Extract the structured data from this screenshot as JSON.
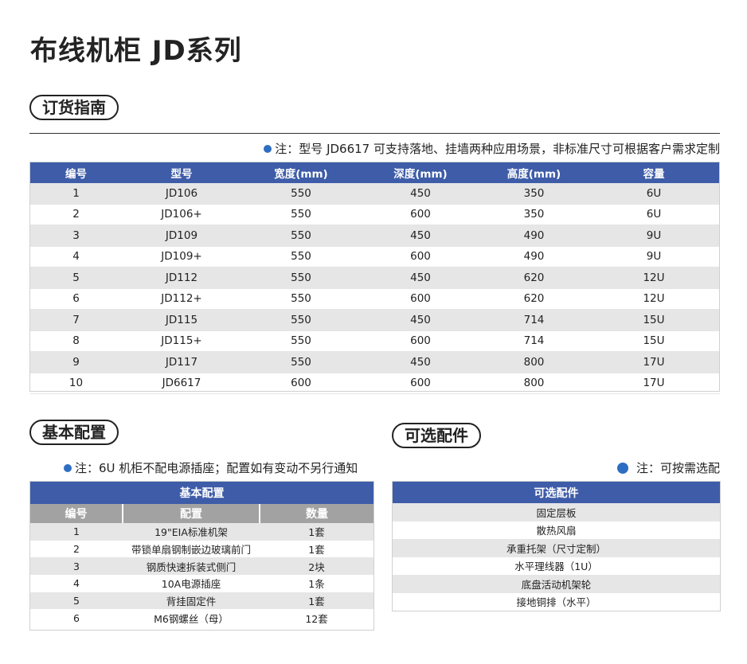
{
  "title": "布线机柜 JD系列",
  "order_section": {
    "heading": "订货指南",
    "note": "注：型号 JD6617 可支持落地、挂墙两种应用场景，非标准尺寸可根据客户需求定制",
    "columns": [
      "编号",
      "型号",
      "宽度(mm)",
      "深度(mm)",
      "高度(mm)",
      "容量"
    ],
    "rows": [
      [
        "1",
        "JD106",
        "550",
        "450",
        "350",
        "6U"
      ],
      [
        "2",
        "JD106+",
        "550",
        "600",
        "350",
        "6U"
      ],
      [
        "3",
        "JD109",
        "550",
        "450",
        "490",
        "9U"
      ],
      [
        "4",
        "JD109+",
        "550",
        "600",
        "490",
        "9U"
      ],
      [
        "5",
        "JD112",
        "550",
        "450",
        "620",
        "12U"
      ],
      [
        "6",
        "JD112+",
        "550",
        "600",
        "620",
        "12U"
      ],
      [
        "7",
        "JD115",
        "550",
        "450",
        "714",
        "15U"
      ],
      [
        "8",
        "JD115+",
        "550",
        "600",
        "714",
        "15U"
      ],
      [
        "9",
        "JD117",
        "550",
        "450",
        "800",
        "17U"
      ],
      [
        "10",
        "JD6617",
        "600",
        "600",
        "800",
        "17U"
      ]
    ]
  },
  "basic_section": {
    "heading": "基本配置",
    "note": "注：6U 机柜不配电源插座；配置如有变动不另行通知",
    "table_title": "基本配置",
    "columns": [
      "编号",
      "配置",
      "数量"
    ],
    "rows": [
      [
        "1",
        "19\"EIA标准机架",
        "1套"
      ],
      [
        "2",
        "带锁单扇钢制嵌边玻璃前门",
        "1套"
      ],
      [
        "3",
        "钢质快速拆装式侧门",
        "2块"
      ],
      [
        "4",
        "10A电源插座",
        "1条"
      ],
      [
        "5",
        "背挂固定件",
        "1套"
      ],
      [
        "6",
        "M6钢螺丝（母）",
        "12套"
      ]
    ]
  },
  "optional_section": {
    "heading": "可选配件",
    "note": "注：可按需选配",
    "table_title": "可选配件",
    "rows": [
      "固定层板",
      "散热风扇",
      "承重托架（尺寸定制）",
      "水平理线器（1U）",
      "底盘活动机架轮",
      "接地铜排（水平）"
    ]
  },
  "colors": {
    "header_blue": "#3e5ca8",
    "bullet_blue": "#2d6ec2",
    "row_alt_gray": "#e6e6e6",
    "subheader_gray": "#a2a2a2"
  },
  "icons": {
    "bullet": "bullet-dot-icon"
  }
}
